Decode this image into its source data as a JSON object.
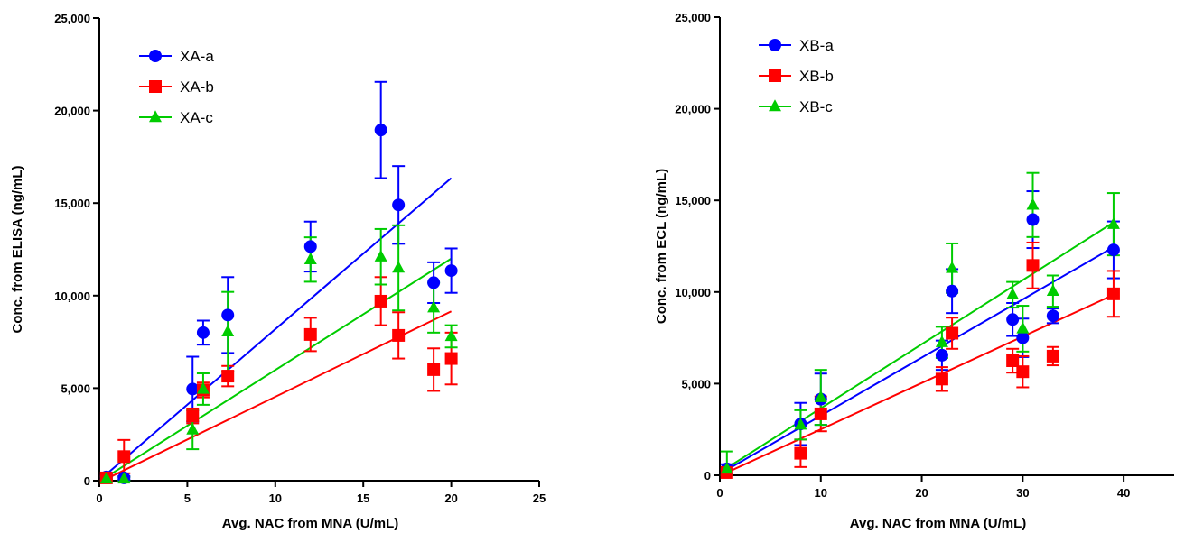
{
  "chart_data": [
    {
      "type": "scatter",
      "title": "",
      "xlabel": "Avg. NAC from MNA (U/mL)",
      "ylabel": "Conc. from ELISA  (ng/mL)",
      "xlim": [
        0,
        25
      ],
      "ylim": [
        0,
        25000
      ],
      "xticks": [
        0,
        5,
        10,
        15,
        20,
        25
      ],
      "yticks": [
        0,
        5000,
        10000,
        15000,
        20000,
        25000
      ],
      "xtick_labels": [
        "0",
        "5",
        "10",
        "15",
        "20",
        "25"
      ],
      "ytick_labels": [
        "0",
        "5,000",
        "10,000",
        "15,000",
        "20,000",
        "25,000"
      ],
      "grid": false,
      "legend": "top-left",
      "series": [
        {
          "name": "XA-a",
          "color": "#0000ff",
          "marker": "circle",
          "points": [
            {
              "x": 0.4,
              "y": 200,
              "err": 100
            },
            {
              "x": 1.4,
              "y": 150,
              "err": 100
            },
            {
              "x": 5.3,
              "y": 4950,
              "err": 1750
            },
            {
              "x": 5.9,
              "y": 8000,
              "err": 650
            },
            {
              "x": 7.3,
              "y": 8950,
              "err": 2050
            },
            {
              "x": 12.0,
              "y": 12650,
              "err": 1350
            },
            {
              "x": 16.0,
              "y": 18950,
              "err": 2600
            },
            {
              "x": 17.0,
              "y": 14900,
              "err": 2100
            },
            {
              "x": 19.0,
              "y": 10700,
              "err": 1100
            },
            {
              "x": 20.0,
              "y": 11350,
              "err": 1200
            }
          ],
          "fit": {
            "x": [
              0.4,
              20.0
            ],
            "y": [
              350,
              16350
            ]
          }
        },
        {
          "name": "XA-b",
          "color": "#ff0000",
          "marker": "square",
          "points": [
            {
              "x": 0.4,
              "y": 150,
              "err": 100
            },
            {
              "x": 1.4,
              "y": 1300,
              "err": 900
            },
            {
              "x": 5.3,
              "y": 3500,
              "err": 400
            },
            {
              "x": 5.9,
              "y": 4900,
              "err": 400
            },
            {
              "x": 7.3,
              "y": 5650,
              "err": 550
            },
            {
              "x": 12.0,
              "y": 7900,
              "err": 900
            },
            {
              "x": 16.0,
              "y": 9700,
              "err": 1300
            },
            {
              "x": 17.0,
              "y": 7850,
              "err": 1250
            },
            {
              "x": 19.0,
              "y": 6000,
              "err": 1150
            },
            {
              "x": 20.0,
              "y": 6600,
              "err": 1400
            }
          ],
          "fit": {
            "x": [
              0.4,
              20.0
            ],
            "y": [
              100,
              9150
            ]
          }
        },
        {
          "name": "XA-c",
          "color": "#00cc00",
          "marker": "triangle",
          "points": [
            {
              "x": 0.4,
              "y": 100,
              "err": 100
            },
            {
              "x": 1.4,
              "y": 100,
              "err": 100
            },
            {
              "x": 5.3,
              "y": 2750,
              "err": 1050
            },
            {
              "x": 5.9,
              "y": 4950,
              "err": 850
            },
            {
              "x": 7.3,
              "y": 8050,
              "err": 2150
            },
            {
              "x": 12.0,
              "y": 11950,
              "err": 1200
            },
            {
              "x": 16.0,
              "y": 12100,
              "err": 1500
            },
            {
              "x": 17.0,
              "y": 11500,
              "err": 2300
            },
            {
              "x": 19.0,
              "y": 9350,
              "err": 1350
            },
            {
              "x": 20.0,
              "y": 7800,
              "err": 600
            }
          ],
          "fit": {
            "x": [
              0.4,
              20.0
            ],
            "y": [
              200,
              12000
            ]
          }
        }
      ]
    },
    {
      "type": "scatter",
      "title": "",
      "xlabel": "Avg. NAC from MNA (U/mL)",
      "ylabel": "Conc. from ECL (ng/mL)",
      "xlim": [
        0,
        45
      ],
      "ylim": [
        0,
        25000
      ],
      "xticks": [
        0,
        10,
        20,
        30,
        40
      ],
      "yticks": [
        0,
        5000,
        10000,
        15000,
        20000,
        25000
      ],
      "xtick_labels": [
        "0",
        "10",
        "20",
        "30",
        "40"
      ],
      "ytick_labels": [
        "0",
        "5,000",
        "10,000",
        "15,000",
        "20,000",
        "25,000"
      ],
      "grid": false,
      "legend": "top-left",
      "series": [
        {
          "name": "XB-a",
          "color": "#0000ff",
          "marker": "circle",
          "points": [
            {
              "x": 0.7,
              "y": 350,
              "err": 250
            },
            {
              "x": 8.0,
              "y": 2800,
              "err": 1150
            },
            {
              "x": 10.0,
              "y": 4150,
              "err": 1400
            },
            {
              "x": 22.0,
              "y": 6550,
              "err": 800
            },
            {
              "x": 23.0,
              "y": 10050,
              "err": 1200
            },
            {
              "x": 29.0,
              "y": 8500,
              "err": 900
            },
            {
              "x": 30.0,
              "y": 7500,
              "err": 1050
            },
            {
              "x": 31.0,
              "y": 13950,
              "err": 1550
            },
            {
              "x": 33.0,
              "y": 8700,
              "err": 400
            },
            {
              "x": 39.0,
              "y": 12300,
              "err": 1550
            }
          ],
          "fit": {
            "x": [
              0.7,
              39.0
            ],
            "y": [
              300,
              12450
            ]
          }
        },
        {
          "name": "XB-b",
          "color": "#ff0000",
          "marker": "square",
          "points": [
            {
              "x": 0.7,
              "y": 150,
              "err": 150
            },
            {
              "x": 8.0,
              "y": 1200,
              "err": 750
            },
            {
              "x": 10.0,
              "y": 3350,
              "err": 950
            },
            {
              "x": 22.0,
              "y": 5250,
              "err": 650
            },
            {
              "x": 23.0,
              "y": 7750,
              "err": 850
            },
            {
              "x": 29.0,
              "y": 6250,
              "err": 650
            },
            {
              "x": 30.0,
              "y": 5650,
              "err": 850
            },
            {
              "x": 31.0,
              "y": 11450,
              "err": 1250
            },
            {
              "x": 33.0,
              "y": 6500,
              "err": 500
            },
            {
              "x": 39.0,
              "y": 9900,
              "err": 1250
            }
          ],
          "fit": {
            "x": [
              0.7,
              39.0
            ],
            "y": [
              150,
              9850
            ]
          }
        },
        {
          "name": "XB-c",
          "color": "#00cc00",
          "marker": "triangle",
          "points": [
            {
              "x": 0.7,
              "y": 350,
              "err": 950
            },
            {
              "x": 8.0,
              "y": 2750,
              "err": 800
            },
            {
              "x": 10.0,
              "y": 4250,
              "err": 1500
            },
            {
              "x": 22.0,
              "y": 7250,
              "err": 850
            },
            {
              "x": 23.0,
              "y": 11300,
              "err": 1350
            },
            {
              "x": 29.0,
              "y": 9850,
              "err": 700
            },
            {
              "x": 30.0,
              "y": 8000,
              "err": 1250
            },
            {
              "x": 31.0,
              "y": 14750,
              "err": 1750
            },
            {
              "x": 33.0,
              "y": 10050,
              "err": 850
            },
            {
              "x": 39.0,
              "y": 13700,
              "err": 1700
            }
          ],
          "fit": {
            "x": [
              0.7,
              39.0
            ],
            "y": [
              400,
              13800
            ]
          }
        }
      ]
    }
  ]
}
